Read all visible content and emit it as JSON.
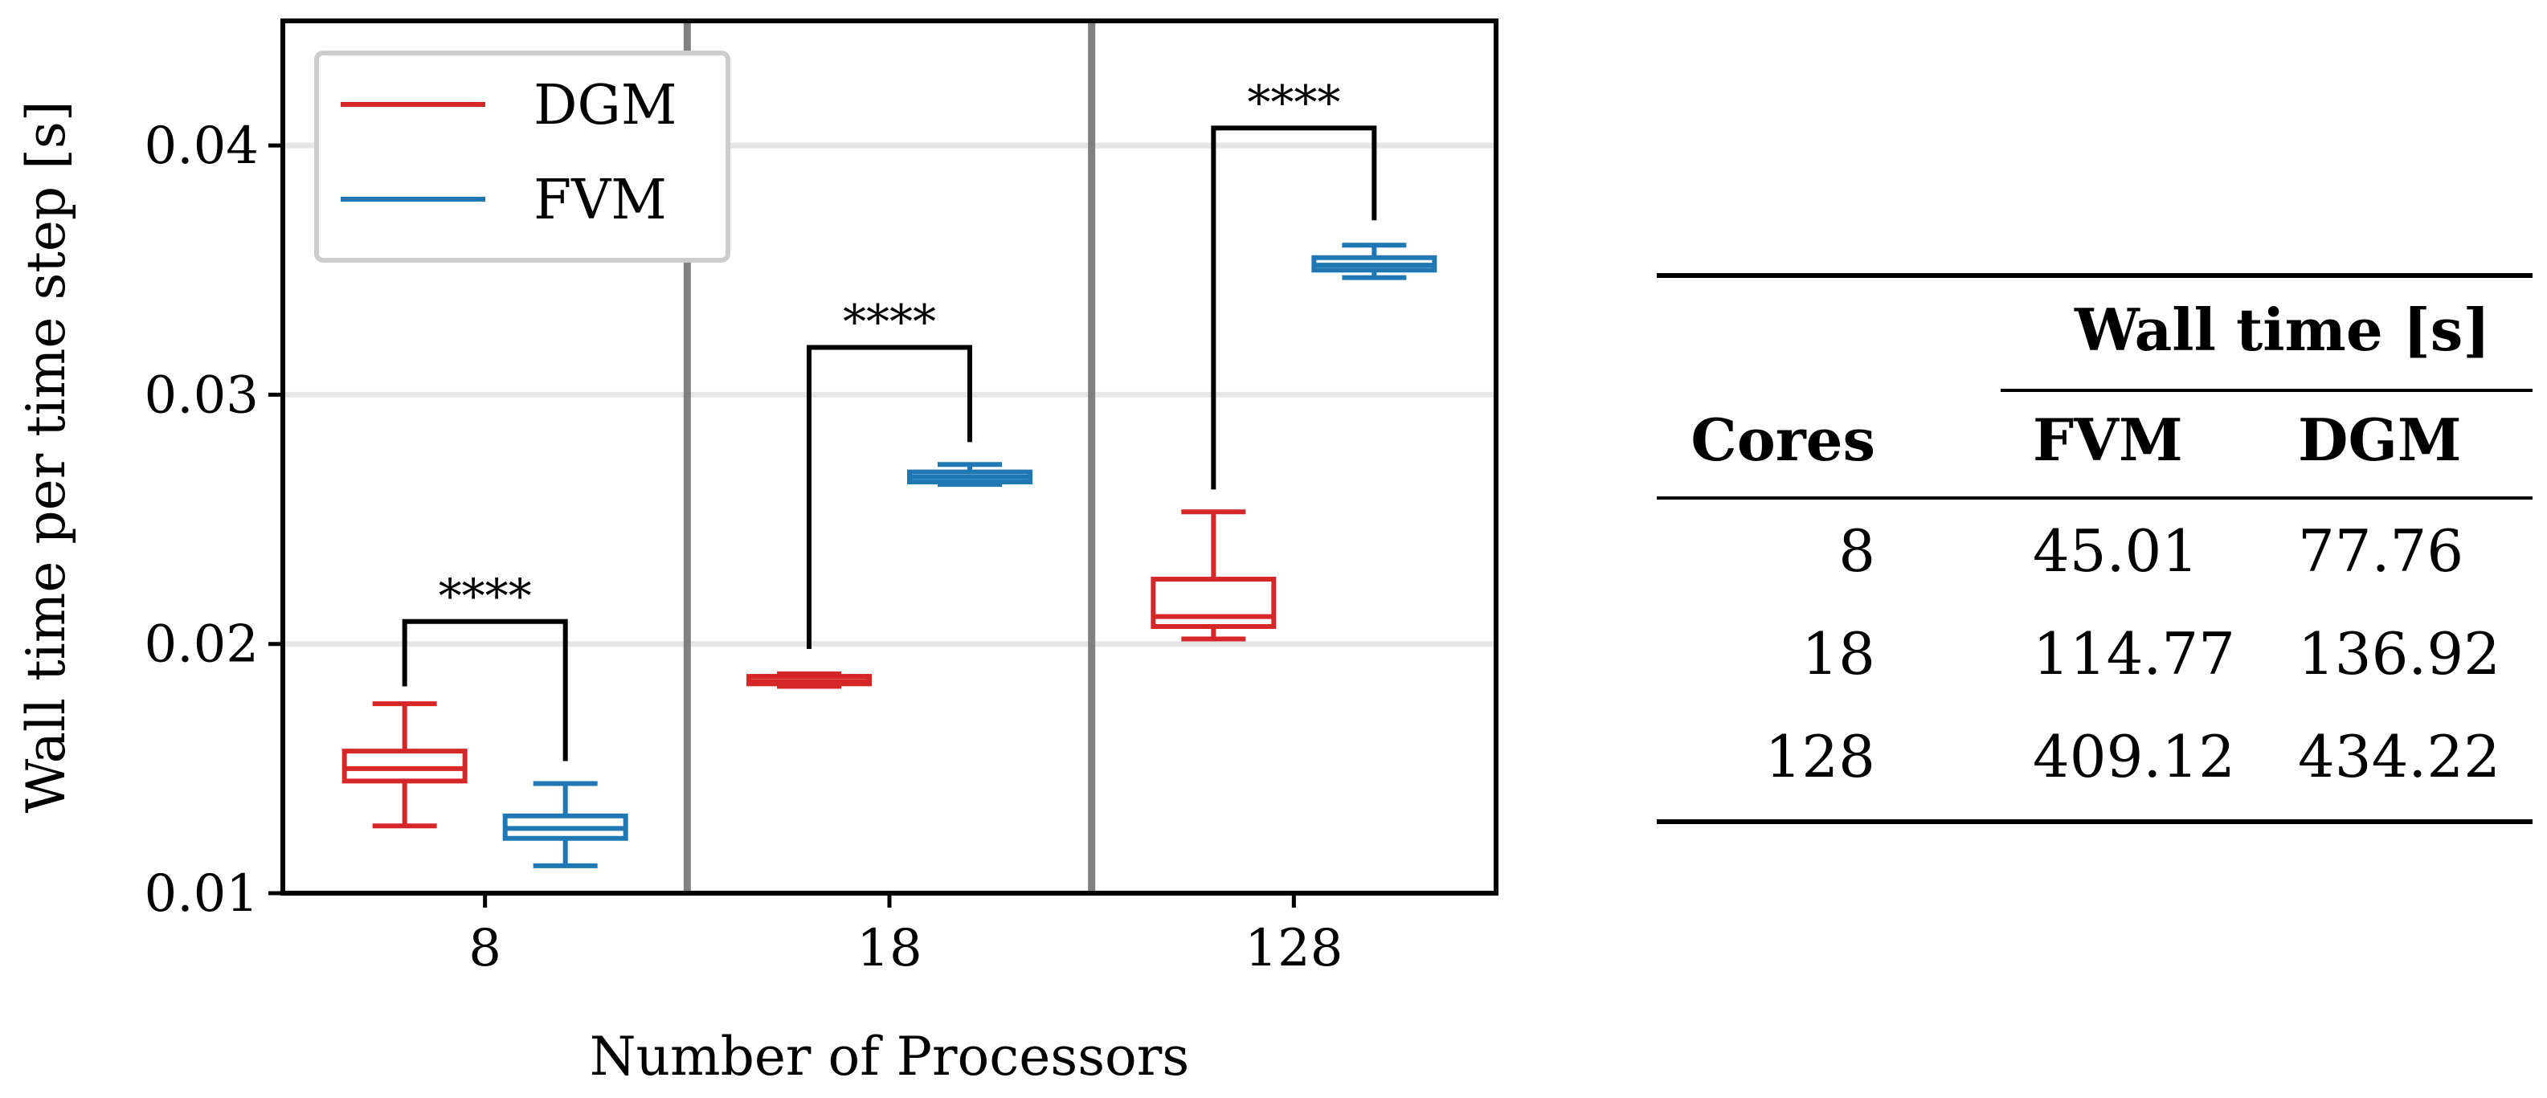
{
  "chart_data": {
    "type": "box",
    "ylabel": "Wall time per time step [s]",
    "xlabel": "Number of Processors",
    "ylim": [
      0.01,
      0.045
    ],
    "yticks": [
      "0.01",
      "0.02",
      "0.03",
      "0.04"
    ],
    "grid": "horizontal",
    "legend_position": "top-left",
    "categories": [
      "8",
      "18",
      "128"
    ],
    "series": [
      {
        "name": "DGM",
        "color": "#d62728",
        "boxes": [
          {
            "category": "8",
            "whisker_low": 0.0127,
            "q1": 0.0145,
            "median": 0.015,
            "q3": 0.0157,
            "whisker_high": 0.0176
          },
          {
            "category": "18",
            "whisker_low": 0.0183,
            "q1": 0.0184,
            "median": 0.0185,
            "q3": 0.0187,
            "whisker_high": 0.0188
          },
          {
            "category": "128",
            "whisker_low": 0.0202,
            "q1": 0.0207,
            "median": 0.0211,
            "q3": 0.0226,
            "whisker_high": 0.0253
          }
        ]
      },
      {
        "name": "FVM",
        "color": "#1f77b4",
        "boxes": [
          {
            "category": "8",
            "whisker_low": 0.0111,
            "q1": 0.0122,
            "median": 0.0126,
            "q3": 0.0131,
            "whisker_high": 0.0144
          },
          {
            "category": "18",
            "whisker_low": 0.0264,
            "q1": 0.0265,
            "median": 0.0267,
            "q3": 0.0269,
            "whisker_high": 0.0272
          },
          {
            "category": "128",
            "whisker_low": 0.0347,
            "q1": 0.035,
            "median": 0.0352,
            "q3": 0.0355,
            "whisker_high": 0.036
          }
        ]
      }
    ],
    "annotations": [
      {
        "category": "8",
        "label": "****",
        "bracket_y": 0.0209,
        "left_y": 0.0183,
        "right_y": 0.0153
      },
      {
        "category": "18",
        "label": "****",
        "bracket_y": 0.0319,
        "left_y": 0.0198,
        "right_y": 0.0281
      },
      {
        "category": "128",
        "label": "****",
        "bracket_y": 0.0407,
        "left_y": 0.0262,
        "right_y": 0.037
      }
    ]
  },
  "table": {
    "group_header": "Wall time [s]",
    "headers": [
      "Cores",
      "FVM",
      "DGM"
    ],
    "rows": [
      [
        "8",
        "45.01",
        "77.76"
      ],
      [
        "18",
        "114.77",
        "136.92"
      ],
      [
        "128",
        "409.12",
        "434.22"
      ]
    ]
  }
}
